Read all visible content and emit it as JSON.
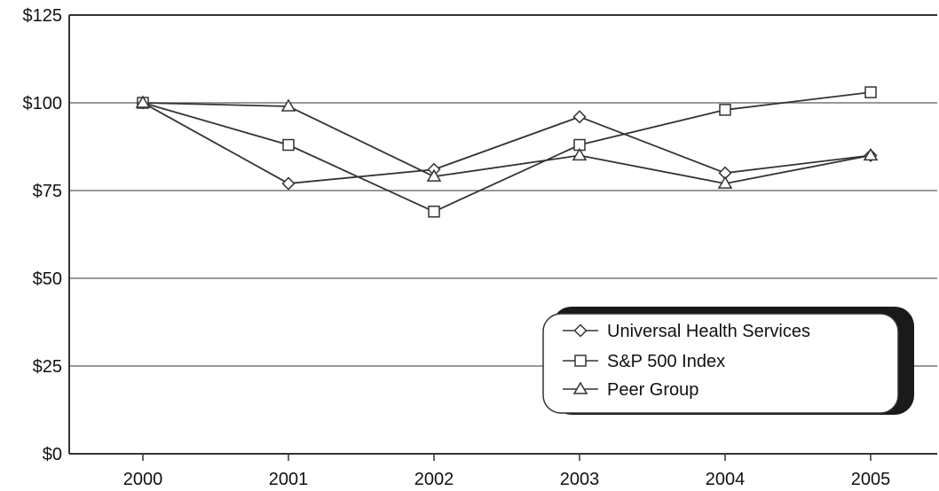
{
  "chart_data": {
    "type": "line",
    "title": "",
    "xlabel": "",
    "ylabel": "",
    "categories": [
      "2000",
      "2001",
      "2002",
      "2003",
      "2004",
      "2005"
    ],
    "ylim": [
      0,
      125
    ],
    "yticks": [
      0,
      25,
      50,
      75,
      100,
      125
    ],
    "ytick_labels": [
      "$0",
      "$25",
      "$50",
      "$75",
      "$100",
      "$125"
    ],
    "grid": "horizontal",
    "legend_position": "bottom-right",
    "series": [
      {
        "name": "Universal Health Services",
        "marker": "diamond",
        "values": [
          100,
          77,
          81,
          96,
          80,
          85
        ]
      },
      {
        "name": "S&P 500 Index",
        "marker": "square",
        "values": [
          100,
          88,
          69,
          88,
          98,
          103
        ]
      },
      {
        "name": "Peer Group",
        "marker": "triangle",
        "values": [
          100,
          99,
          79,
          85,
          77,
          85
        ]
      }
    ]
  }
}
